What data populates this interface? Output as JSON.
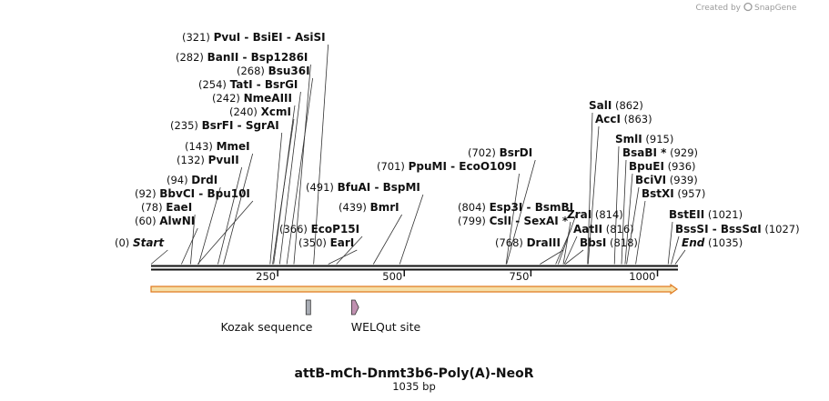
{
  "app": {
    "credit": "Created by",
    "brand": "SnapGene"
  },
  "map": {
    "name": "attB-mCh-Dnmt3b6-Poly(A)-NeoR",
    "length_label": "1035 bp",
    "length_bp": 1035,
    "ticks": [
      {
        "pos": 250,
        "label": "250"
      },
      {
        "pos": 500,
        "label": "500"
      },
      {
        "pos": 750,
        "label": "750"
      },
      {
        "pos": 1000,
        "label": "1000"
      }
    ],
    "sites": [
      {
        "num": "(0)",
        "text": "Start",
        "pos": 0,
        "style": "italic"
      },
      {
        "num": "(60)",
        "text": "AlwNI",
        "pos": 60
      },
      {
        "num": "(78)",
        "text": "EaeI",
        "pos": 78
      },
      {
        "num": "(92)",
        "text": "BbvCI",
        "sep": " - ",
        "text2": "Bpu10I",
        "pos": 92
      },
      {
        "num": "(94)",
        "text": "DrdI",
        "pos": 94
      },
      {
        "num": "(132)",
        "text": "PvuII",
        "pos": 132
      },
      {
        "num": "(143)",
        "text": "MmeI",
        "pos": 143
      },
      {
        "num": "(235)",
        "text": "BsrFI",
        "sep": " - ",
        "text2": "SgrAI",
        "pos": 235
      },
      {
        "num": "(240)",
        "text": "XcmI",
        "pos": 240
      },
      {
        "num": "(242)",
        "text": "NmeAIII",
        "pos": 242
      },
      {
        "num": "(254)",
        "text": "TatI",
        "sep": " - ",
        "text2": "BsrGI",
        "pos": 254
      },
      {
        "num": "(268)",
        "text": "Bsu36I",
        "pos": 268
      },
      {
        "num": "(282)",
        "text": "BanII",
        "sep": " - ",
        "text2": "Bsp1286I",
        "pos": 282
      },
      {
        "num": "(321)",
        "text": "PvuI",
        "sep": " - ",
        "text2": "BsiEI",
        "sep2": " - ",
        "text3": "AsiSI",
        "pos": 321
      },
      {
        "num": "(350)",
        "text": "EarI",
        "pos": 350
      },
      {
        "num": "(366)",
        "text": "EcoP15I",
        "pos": 366
      },
      {
        "num": "(491)",
        "text": "BfuAI",
        "sep": " - ",
        "text2": "BspMI",
        "pos": 491
      },
      {
        "num": "(439)",
        "text": "BmrI",
        "pos": 439
      },
      {
        "num": "(701)",
        "text": "PpuMI",
        "sep": " - ",
        "text2": "EcoO109I",
        "pos": 701
      },
      {
        "num": "(702)",
        "text": "BsrDI",
        "pos": 702
      },
      {
        "num": "(768)",
        "text": "DraIII",
        "pos": 768
      },
      {
        "num": "(799)",
        "text": "CslI",
        "sep": " - ",
        "text2": "SexAI *",
        "pos": 799
      },
      {
        "num": "(804)",
        "text": "Esp3I",
        "sep": " - ",
        "text2": "BsmBI",
        "pos": 804
      },
      {
        "text": "ZraI",
        "num2": "(814)",
        "pos": 814
      },
      {
        "text": "AatII",
        "num2": "(816)",
        "pos": 816
      },
      {
        "text": "BbsI",
        "num2": "(818)",
        "pos": 818
      },
      {
        "text": "SalI",
        "num2": "(862)",
        "pos": 862
      },
      {
        "text": "AccI",
        "num2": "(863)",
        "pos": 863
      },
      {
        "text": "SmlI",
        "num2": "(915)",
        "pos": 915
      },
      {
        "text": "BsaBI *",
        "num2": "(929)",
        "pos": 929
      },
      {
        "text": "BpuEI",
        "num2": "(936)",
        "pos": 936
      },
      {
        "text": "BciVI",
        "num2": "(939)",
        "pos": 939
      },
      {
        "text": "BstXI",
        "num2": "(957)",
        "pos": 957
      },
      {
        "text": "BstEII",
        "num2": "(1021)",
        "pos": 1021
      },
      {
        "text": "BssSI",
        "sep": " - ",
        "text2": "BssSαI",
        "num2": "(1027)",
        "pos": 1027
      },
      {
        "text": "End",
        "num2": "(1035)",
        "pos": 1035,
        "style": "italic"
      }
    ],
    "features": [
      {
        "label": "Kozak sequence",
        "start": 306,
        "end": 315,
        "color": "#a9adb5"
      },
      {
        "label": "WELQut site",
        "start": 396,
        "end": 410,
        "color": "#c090b0"
      }
    ],
    "orf": {
      "start": 1,
      "end": 1035,
      "direction": "forward",
      "color": "#f5dfa8"
    },
    "colors": {
      "line": "#111111",
      "orf_border": "#e07a20"
    }
  }
}
